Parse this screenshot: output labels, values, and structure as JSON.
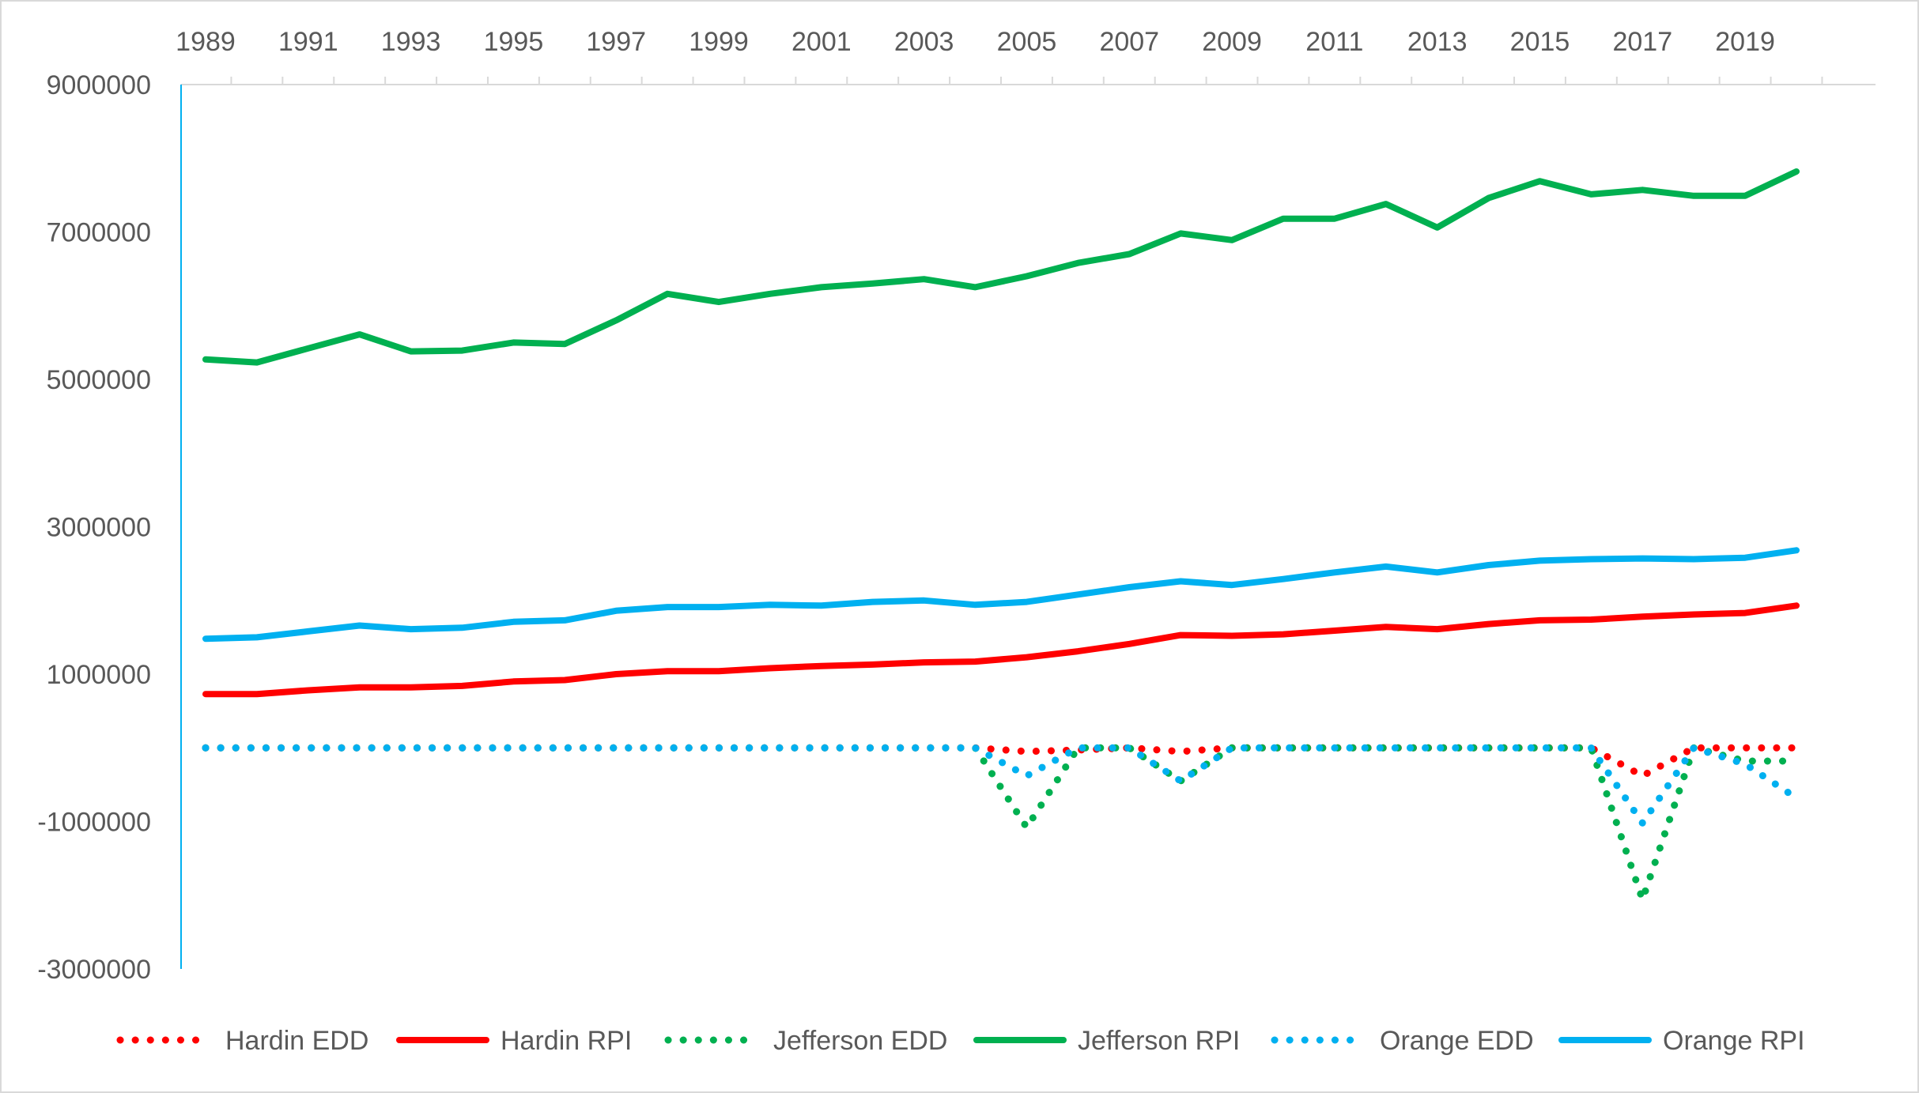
{
  "chart_data": {
    "type": "line",
    "title": "",
    "xlabel": "",
    "ylabel": "",
    "x": [
      1989,
      1990,
      1991,
      1992,
      1993,
      1994,
      1995,
      1996,
      1997,
      1998,
      1999,
      2000,
      2001,
      2002,
      2003,
      2004,
      2005,
      2006,
      2007,
      2008,
      2009,
      2010,
      2011,
      2012,
      2013,
      2014,
      2015,
      2016,
      2017,
      2018,
      2019,
      2020
    ],
    "x_tick_labels": [
      "1989",
      "1991",
      "1993",
      "1995",
      "1997",
      "1999",
      "2001",
      "2003",
      "2005",
      "2007",
      "2009",
      "2011",
      "2013",
      "2015",
      "2017",
      "2019"
    ],
    "y_tick_labels": [
      "9000000",
      "7000000",
      "5000000",
      "3000000",
      "1000000",
      "-1000000",
      "-3000000"
    ],
    "ylim": [
      -3000000,
      9000000
    ],
    "x_axis_position": "top",
    "grid": false,
    "legend_position": "bottom",
    "series": [
      {
        "name": "Hardin EDD",
        "style": "dotted",
        "color": "#ff0000",
        "values": [
          0,
          0,
          0,
          0,
          0,
          0,
          0,
          0,
          0,
          0,
          0,
          0,
          0,
          0,
          0,
          0,
          -50000,
          -30000,
          0,
          -50000,
          0,
          0,
          0,
          0,
          0,
          0,
          0,
          0,
          -380000,
          0,
          0,
          0
        ]
      },
      {
        "name": "Hardin RPI",
        "style": "solid",
        "color": "#ff0000",
        "values": [
          730000,
          730000,
          780000,
          820000,
          820000,
          840000,
          900000,
          920000,
          1000000,
          1040000,
          1040000,
          1080000,
          1110000,
          1130000,
          1160000,
          1170000,
          1230000,
          1310000,
          1410000,
          1530000,
          1520000,
          1540000,
          1590000,
          1640000,
          1610000,
          1680000,
          1730000,
          1740000,
          1780000,
          1810000,
          1830000,
          1930000
        ]
      },
      {
        "name": "Jefferson EDD",
        "style": "dotted",
        "color": "#00b050",
        "values": [
          0,
          0,
          0,
          0,
          0,
          0,
          0,
          0,
          0,
          0,
          0,
          0,
          0,
          0,
          0,
          0,
          -1080000,
          0,
          0,
          -450000,
          0,
          0,
          0,
          0,
          0,
          0,
          0,
          0,
          -2060000,
          0,
          -180000,
          -180000
        ]
      },
      {
        "name": "Jefferson RPI",
        "style": "solid",
        "color": "#00b050",
        "values": [
          5270000,
          5230000,
          5420000,
          5610000,
          5380000,
          5390000,
          5500000,
          5480000,
          5800000,
          6160000,
          6050000,
          6160000,
          6250000,
          6300000,
          6360000,
          6250000,
          6400000,
          6580000,
          6700000,
          6980000,
          6890000,
          7180000,
          7180000,
          7380000,
          7060000,
          7460000,
          7690000,
          7510000,
          7570000,
          7490000,
          7490000,
          7820000
        ]
      },
      {
        "name": "Orange EDD",
        "style": "dotted",
        "color": "#00b0f0",
        "values": [
          0,
          0,
          0,
          0,
          0,
          0,
          0,
          0,
          0,
          0,
          0,
          0,
          0,
          0,
          0,
          0,
          -380000,
          0,
          0,
          -450000,
          0,
          0,
          0,
          0,
          0,
          0,
          0,
          0,
          -1020000,
          0,
          -220000,
          -680000
        ]
      },
      {
        "name": "Orange RPI",
        "style": "solid",
        "color": "#00b0f0",
        "values": [
          1480000,
          1500000,
          1580000,
          1660000,
          1610000,
          1630000,
          1710000,
          1730000,
          1860000,
          1910000,
          1910000,
          1940000,
          1930000,
          1980000,
          2000000,
          1940000,
          1980000,
          2080000,
          2180000,
          2260000,
          2210000,
          2290000,
          2380000,
          2460000,
          2380000,
          2480000,
          2540000,
          2560000,
          2570000,
          2560000,
          2580000,
          2680000
        ]
      }
    ]
  }
}
